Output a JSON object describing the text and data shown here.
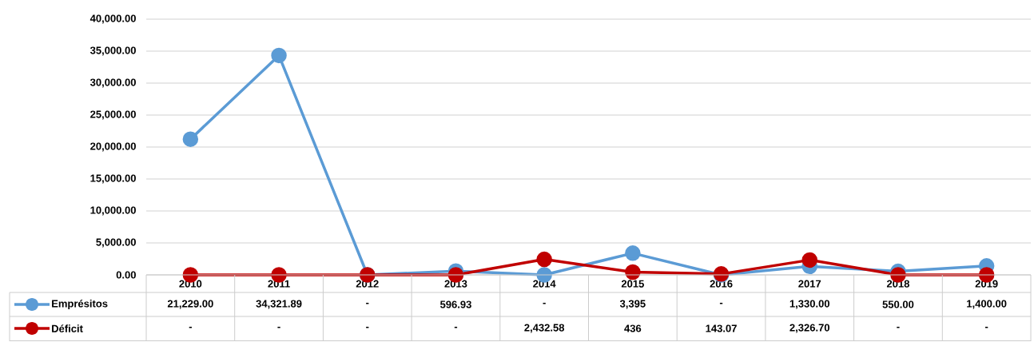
{
  "chart_data": {
    "type": "line",
    "categories": [
      "2010",
      "2011",
      "2012",
      "2013",
      "2014",
      "2015",
      "2016",
      "2017",
      "2018",
      "2019"
    ],
    "series": [
      {
        "name": "Emprésitos",
        "color": "#5b9bd5",
        "values": [
          21229.0,
          34321.89,
          0,
          596.93,
          0,
          3395,
          0,
          1330.0,
          550.0,
          1400.0
        ],
        "value_labels": [
          "21,229.00",
          "34,321.89",
          "-",
          "596.93",
          "-",
          "3,395",
          "-",
          "1,330.00",
          "550.00",
          "1,400.00"
        ]
      },
      {
        "name": "Déficit",
        "color": "#c00000",
        "values": [
          0,
          0,
          0,
          0,
          2432.58,
          436,
          143.07,
          2326.7,
          0,
          0
        ],
        "value_labels": [
          "-",
          "-",
          "-",
          "-",
          "2,432.58",
          "436",
          "143.07",
          "2,326.70",
          "-",
          "-"
        ]
      }
    ],
    "ylim": [
      0,
      40000
    ],
    "yticks": [
      {
        "value": 0,
        "label": "0.00"
      },
      {
        "value": 5000,
        "label": "5,000.00"
      },
      {
        "value": 10000,
        "label": "10,000.00"
      },
      {
        "value": 15000,
        "label": "15,000.00"
      },
      {
        "value": 20000,
        "label": "20,000.00"
      },
      {
        "value": 25000,
        "label": "25,000.00"
      },
      {
        "value": 30000,
        "label": "30,000.00"
      },
      {
        "value": 35000,
        "label": "35,000.00"
      },
      {
        "value": 40000,
        "label": "40,000.00"
      }
    ],
    "grid": "y",
    "legend": "bottom",
    "marker": "circle",
    "line_style": "solid"
  }
}
